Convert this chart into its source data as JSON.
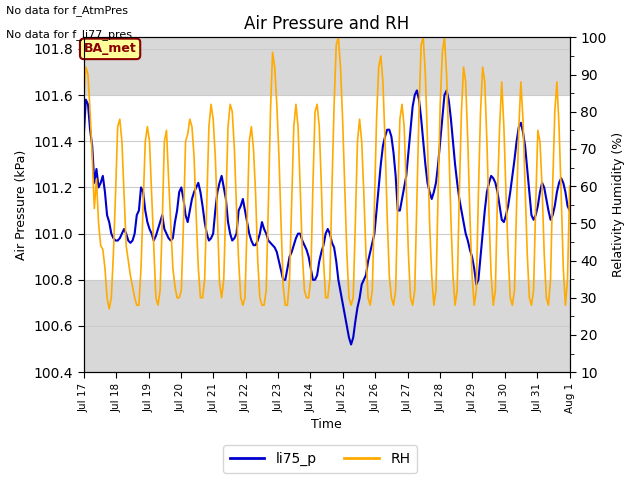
{
  "title": "Air Pressure and RH",
  "xlabel": "Time",
  "ylabel_left": "Air Pressure (kPa)",
  "ylabel_right": "Relativity Humidity (%)",
  "text_no_data1": "No data for f_AtmPres",
  "text_no_data2": "No data for f_li77_pres",
  "legend_label1": "li75_p",
  "legend_label2": "RH",
  "color_pressure": "#0000cc",
  "color_rh": "#ffaa00",
  "ylim_left": [
    100.4,
    101.85
  ],
  "ylim_right": [
    10,
    100
  ],
  "yticks_left": [
    100.4,
    100.6,
    100.8,
    101.0,
    101.2,
    101.4,
    101.6,
    101.8
  ],
  "yticks_right": [
    10,
    20,
    30,
    40,
    50,
    60,
    70,
    80,
    90,
    100
  ],
  "bg_plot_color": "#ffffff",
  "bg_fig_color": "#ffffff",
  "shade_band1_lower": 100.4,
  "shade_band1_upper": 100.8,
  "shade_band2_lower": 101.6,
  "shade_band2_upper": 101.85,
  "ba_met_box_color": "#ffff99",
  "ba_met_text_color": "#8b0000",
  "ba_met_border_color": "#8b0000",
  "pressure_data": [
    101.42,
    101.58,
    101.56,
    101.45,
    101.38,
    101.22,
    101.28,
    101.2,
    101.22,
    101.25,
    101.18,
    101.08,
    101.05,
    101.0,
    100.98,
    100.97,
    100.97,
    100.98,
    101.0,
    101.02,
    101.0,
    100.97,
    100.96,
    100.97,
    101.0,
    101.08,
    101.1,
    101.2,
    101.18,
    101.1,
    101.05,
    101.02,
    101.0,
    100.97,
    100.99,
    101.02,
    101.05,
    101.08,
    101.02,
    101.0,
    100.98,
    100.97,
    100.98,
    101.05,
    101.1,
    101.18,
    101.2,
    101.15,
    101.08,
    101.05,
    101.1,
    101.15,
    101.18,
    101.2,
    101.22,
    101.18,
    101.12,
    101.05,
    101.0,
    100.97,
    100.98,
    101.0,
    101.1,
    101.18,
    101.22,
    101.25,
    101.2,
    101.15,
    101.05,
    101.0,
    100.97,
    100.98,
    101.0,
    101.1,
    101.12,
    101.15,
    101.1,
    101.05,
    101.0,
    100.97,
    100.95,
    100.95,
    100.97,
    101.0,
    101.05,
    101.02,
    101.0,
    100.97,
    100.96,
    100.95,
    100.94,
    100.92,
    100.88,
    100.84,
    100.8,
    100.8,
    100.85,
    100.9,
    100.92,
    100.95,
    100.98,
    101.0,
    101.0,
    100.97,
    100.95,
    100.93,
    100.9,
    100.85,
    100.8,
    100.8,
    100.82,
    100.88,
    100.92,
    100.95,
    101.0,
    101.02,
    101.0,
    100.96,
    100.94,
    100.88,
    100.8,
    100.75,
    100.7,
    100.65,
    100.6,
    100.55,
    100.52,
    100.55,
    100.62,
    100.68,
    100.72,
    100.78,
    100.8,
    100.82,
    100.88,
    100.92,
    100.96,
    101.0,
    101.1,
    101.2,
    101.3,
    101.38,
    101.42,
    101.45,
    101.45,
    101.42,
    101.35,
    101.25,
    101.1,
    101.1,
    101.15,
    101.2,
    101.25,
    101.35,
    101.45,
    101.55,
    101.6,
    101.62,
    101.58,
    101.5,
    101.4,
    101.3,
    101.22,
    101.18,
    101.15,
    101.18,
    101.22,
    101.3,
    101.4,
    101.5,
    101.6,
    101.62,
    101.58,
    101.5,
    101.4,
    101.3,
    101.22,
    101.15,
    101.1,
    101.05,
    101.0,
    100.97,
    100.93,
    100.9,
    100.85,
    100.78,
    100.8,
    100.9,
    101.0,
    101.1,
    101.18,
    101.22,
    101.25,
    101.24,
    101.22,
    101.18,
    101.12,
    101.06,
    101.05,
    101.08,
    101.12,
    101.18,
    101.25,
    101.32,
    101.4,
    101.46,
    101.48,
    101.44,
    101.38,
    101.28,
    101.18,
    101.08,
    101.06,
    101.08,
    101.12,
    101.18,
    101.22,
    101.2,
    101.15,
    101.1,
    101.06,
    101.08,
    101.12,
    101.18,
    101.22,
    101.24,
    101.22,
    101.18,
    101.12,
    101.1
  ],
  "rh_data": [
    83,
    92,
    90,
    80,
    68,
    54,
    62,
    50,
    44,
    43,
    38,
    30,
    27,
    30,
    42,
    58,
    76,
    78,
    72,
    58,
    44,
    40,
    36,
    33,
    30,
    28,
    28,
    38,
    55,
    72,
    76,
    72,
    58,
    44,
    30,
    28,
    32,
    50,
    72,
    75,
    62,
    50,
    38,
    33,
    30,
    30,
    32,
    50,
    72,
    74,
    78,
    76,
    68,
    52,
    38,
    30,
    30,
    35,
    55,
    76,
    82,
    78,
    68,
    52,
    34,
    30,
    35,
    55,
    76,
    82,
    80,
    70,
    54,
    40,
    30,
    28,
    30,
    50,
    72,
    76,
    70,
    58,
    40,
    30,
    28,
    28,
    32,
    55,
    80,
    96,
    92,
    82,
    68,
    50,
    33,
    28,
    28,
    35,
    55,
    76,
    82,
    76,
    60,
    42,
    32,
    30,
    30,
    35,
    60,
    80,
    82,
    76,
    60,
    40,
    30,
    30,
    35,
    60,
    82,
    98,
    100,
    92,
    78,
    60,
    42,
    30,
    28,
    30,
    50,
    72,
    78,
    72,
    58,
    42,
    30,
    28,
    32,
    55,
    78,
    92,
    95,
    88,
    72,
    52,
    36,
    30,
    28,
    32,
    56,
    78,
    82,
    76,
    60,
    42,
    30,
    28,
    32,
    56,
    80,
    98,
    100,
    90,
    72,
    50,
    36,
    28,
    32,
    58,
    82,
    96,
    100,
    90,
    72,
    52,
    36,
    28,
    32,
    58,
    80,
    92,
    88,
    72,
    52,
    36,
    28,
    32,
    58,
    80,
    92,
    88,
    72,
    52,
    36,
    28,
    32,
    58,
    76,
    88,
    76,
    58,
    42,
    30,
    28,
    32,
    55,
    75,
    88,
    78,
    60,
    42,
    30,
    28,
    32,
    55,
    75,
    72,
    60,
    42,
    30,
    28,
    35,
    60,
    80,
    88,
    76,
    58,
    38,
    28,
    35,
    60
  ]
}
